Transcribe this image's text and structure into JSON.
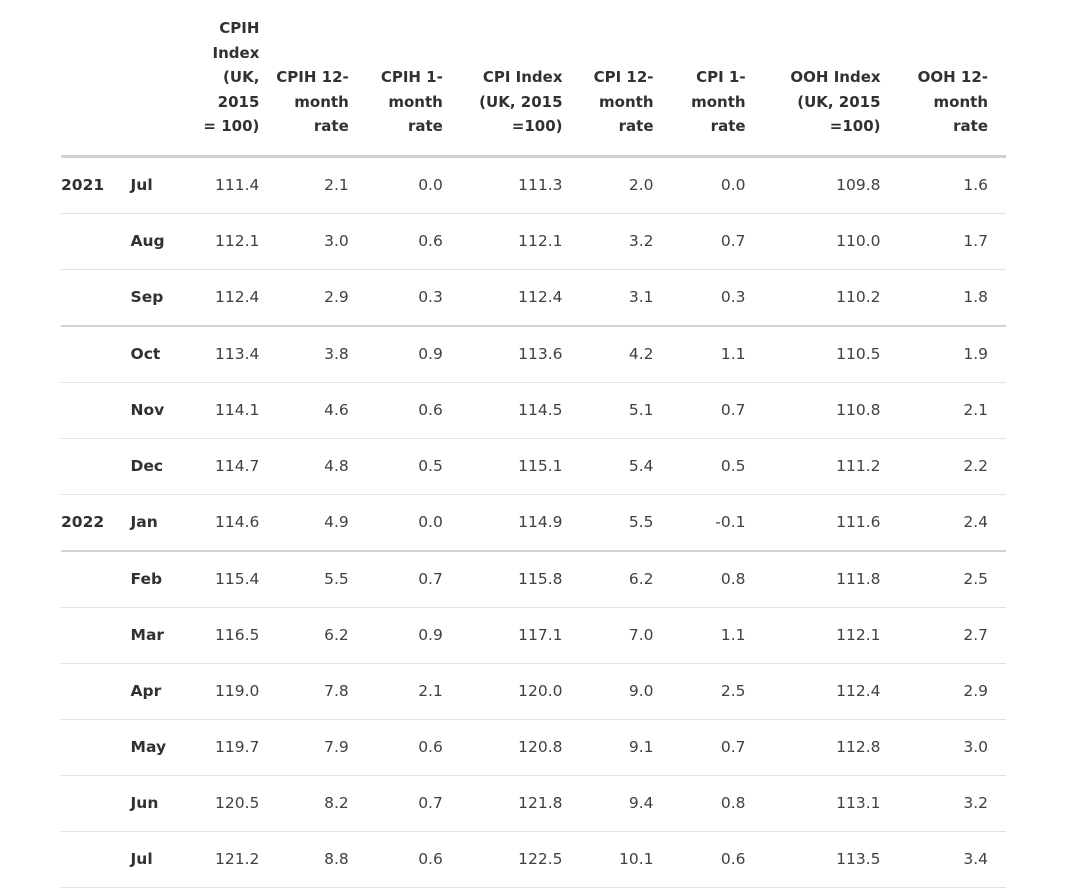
{
  "columns": [
    {
      "key": "cpih_index",
      "lines": [
        "CPIH",
        "Index",
        "(UK,",
        "2015",
        "= 100)"
      ]
    },
    {
      "key": "cpih_12m",
      "lines": [
        "CPIH 12-",
        "month",
        "rate"
      ]
    },
    {
      "key": "cpih_1m",
      "lines": [
        "CPIH 1-",
        "month",
        "rate"
      ]
    },
    {
      "key": "cpi_index",
      "lines": [
        "CPI Index",
        "(UK, 2015",
        "=100)"
      ]
    },
    {
      "key": "cpi_12m",
      "lines": [
        "CPI 12-",
        "month",
        "rate"
      ]
    },
    {
      "key": "cpi_1m",
      "lines": [
        "CPI 1-",
        "month",
        "rate"
      ]
    },
    {
      "key": "ooh_index",
      "lines": [
        "OOH Index",
        "(UK, 2015",
        "=100)"
      ]
    },
    {
      "key": "ooh_12m",
      "lines": [
        "OOH 12-",
        "month",
        "rate"
      ]
    }
  ],
  "rows": [
    {
      "year": "2021",
      "month": "Jul",
      "values": [
        "111.4",
        "2.1",
        "0.0",
        "111.3",
        "2.0",
        "0.0",
        "109.8",
        "1.6"
      ]
    },
    {
      "year": "",
      "month": "Aug",
      "values": [
        "112.1",
        "3.0",
        "0.6",
        "112.1",
        "3.2",
        "0.7",
        "110.0",
        "1.7"
      ]
    },
    {
      "year": "",
      "month": "Sep",
      "values": [
        "112.4",
        "2.9",
        "0.3",
        "112.4",
        "3.1",
        "0.3",
        "110.2",
        "1.8"
      ]
    },
    {
      "year": "",
      "month": "Oct",
      "values": [
        "113.4",
        "3.8",
        "0.9",
        "113.6",
        "4.2",
        "1.1",
        "110.5",
        "1.9"
      ]
    },
    {
      "year": "",
      "month": "Nov",
      "values": [
        "114.1",
        "4.6",
        "0.6",
        "114.5",
        "5.1",
        "0.7",
        "110.8",
        "2.1"
      ]
    },
    {
      "year": "",
      "month": "Dec",
      "values": [
        "114.7",
        "4.8",
        "0.5",
        "115.1",
        "5.4",
        "0.5",
        "111.2",
        "2.2"
      ]
    },
    {
      "year": "2022",
      "month": "Jan",
      "values": [
        "114.6",
        "4.9",
        "0.0",
        "114.9",
        "5.5",
        "-0.1",
        "111.6",
        "2.4"
      ]
    },
    {
      "year": "",
      "month": "Feb",
      "values": [
        "115.4",
        "5.5",
        "0.7",
        "115.8",
        "6.2",
        "0.8",
        "111.8",
        "2.5"
      ]
    },
    {
      "year": "",
      "month": "Mar",
      "values": [
        "116.5",
        "6.2",
        "0.9",
        "117.1",
        "7.0",
        "1.1",
        "112.1",
        "2.7"
      ]
    },
    {
      "year": "",
      "month": "Apr",
      "values": [
        "119.0",
        "7.8",
        "2.1",
        "120.0",
        "9.0",
        "2.5",
        "112.4",
        "2.9"
      ]
    },
    {
      "year": "",
      "month": "May",
      "values": [
        "119.7",
        "7.9",
        "0.6",
        "120.8",
        "9.1",
        "0.7",
        "112.8",
        "3.0"
      ]
    },
    {
      "year": "",
      "month": "Jun",
      "values": [
        "120.5",
        "8.2",
        "0.7",
        "121.8",
        "9.4",
        "0.8",
        "113.1",
        "3.2"
      ]
    },
    {
      "year": "",
      "month": "Jul",
      "values": [
        "121.2",
        "8.8",
        "0.6",
        "122.5",
        "10.1",
        "0.6",
        "113.5",
        "3.4"
      ]
    }
  ]
}
